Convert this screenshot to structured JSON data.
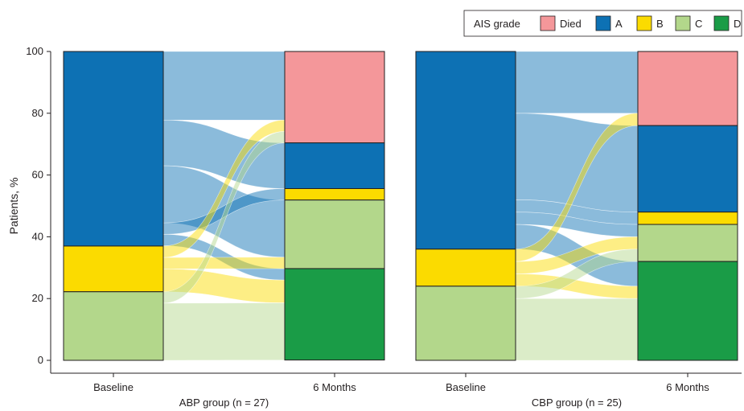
{
  "chart_data": {
    "type": "alluvial",
    "ylabel": "Patients, %",
    "ylim": [
      0,
      100
    ],
    "yticks": [
      "0",
      "20",
      "40",
      "60",
      "80",
      "100"
    ],
    "legend": {
      "title": "AIS grade",
      "placement": "top-right",
      "entries": [
        {
          "name": "Died",
          "color": "#f4979a"
        },
        {
          "name": "A",
          "color": "#0d71b4"
        },
        {
          "name": "B",
          "color": "#fbdb00"
        },
        {
          "name": "C",
          "color": "#b3d78b"
        },
        {
          "name": "D",
          "color": "#1a9c47"
        }
      ]
    },
    "groups": [
      {
        "label": "ABP group (n = 27)",
        "baseline_label": "Baseline",
        "followup_label": "6 Months",
        "baseline": [
          {
            "grade": "A",
            "percent": 63.0
          },
          {
            "grade": "B",
            "percent": 14.8
          },
          {
            "grade": "C",
            "percent": 22.2
          }
        ],
        "followup": [
          {
            "grade": "Died",
            "percent": 29.6
          },
          {
            "grade": "A",
            "percent": 14.8
          },
          {
            "grade": "B",
            "percent": 3.7
          },
          {
            "grade": "C",
            "percent": 22.2
          },
          {
            "grade": "D",
            "percent": 29.6
          }
        ],
        "flows": [
          {
            "from": "A",
            "to": "Died",
            "percent": 22.2
          },
          {
            "from": "A",
            "to": "A",
            "percent": 14.8
          },
          {
            "from": "A",
            "to": "C",
            "percent": 18.5
          },
          {
            "from": "A",
            "to": "B",
            "percent": 3.7
          },
          {
            "from": "A",
            "to": "D",
            "percent": 3.7
          },
          {
            "from": "B",
            "to": "Died",
            "percent": 3.7
          },
          {
            "from": "B",
            "to": "C",
            "percent": 3.7
          },
          {
            "from": "B",
            "to": "D",
            "percent": 7.4
          },
          {
            "from": "C",
            "to": "Died",
            "percent": 3.7
          },
          {
            "from": "C",
            "to": "D",
            "percent": 18.5
          }
        ]
      },
      {
        "label": "CBP group (n = 25)",
        "baseline_label": "Baseline",
        "followup_label": "6 Months",
        "baseline": [
          {
            "grade": "A",
            "percent": 64
          },
          {
            "grade": "B",
            "percent": 12
          },
          {
            "grade": "C",
            "percent": 24
          }
        ],
        "followup": [
          {
            "grade": "Died",
            "percent": 24
          },
          {
            "grade": "A",
            "percent": 28
          },
          {
            "grade": "B",
            "percent": 4
          },
          {
            "grade": "C",
            "percent": 12
          },
          {
            "grade": "D",
            "percent": 32
          }
        ],
        "flows": [
          {
            "from": "A",
            "to": "Died",
            "percent": 20
          },
          {
            "from": "A",
            "to": "A",
            "percent": 28
          },
          {
            "from": "A",
            "to": "B",
            "percent": 4
          },
          {
            "from": "A",
            "to": "C",
            "percent": 4
          },
          {
            "from": "A",
            "to": "D",
            "percent": 8
          },
          {
            "from": "B",
            "to": "Died",
            "percent": 4
          },
          {
            "from": "B",
            "to": "C",
            "percent": 4
          },
          {
            "from": "B",
            "to": "D",
            "percent": 4
          },
          {
            "from": "C",
            "to": "C",
            "percent": 4
          },
          {
            "from": "C",
            "to": "D",
            "percent": 20
          }
        ]
      }
    ]
  }
}
